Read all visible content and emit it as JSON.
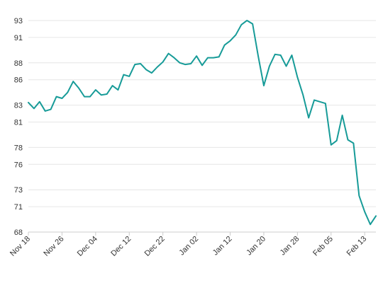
{
  "chart_data": {
    "type": "line",
    "title": "",
    "xlabel": "",
    "ylabel": "",
    "ylim": [
      68,
      94
    ],
    "grid": true,
    "line_color": "#179b98",
    "y_ticks": [
      "68",
      "71",
      "73",
      "76",
      "78",
      "81",
      "83",
      "86",
      "88",
      "91",
      "93"
    ],
    "x_ticks": [
      "Nov 18",
      "Nov 26",
      "Dec 04",
      "Dec 12",
      "Dec 22",
      "Jan 02",
      "Jan 12",
      "Jan 20",
      "Jan 28",
      "Feb 05",
      "Feb 13"
    ],
    "x_tick_index": [
      0,
      6,
      12,
      18,
      24,
      30,
      36,
      42,
      48,
      54,
      60
    ],
    "series": [
      {
        "values": [
          83.3,
          82.6,
          83.4,
          82.3,
          82.5,
          84.0,
          83.8,
          84.5,
          85.8,
          85.0,
          84.0,
          84.0,
          84.8,
          84.2,
          84.3,
          85.3,
          84.8,
          86.6,
          86.4,
          87.8,
          87.9,
          87.2,
          86.8,
          87.5,
          88.1,
          89.1,
          88.6,
          88.0,
          87.8,
          87.9,
          88.8,
          87.7,
          88.6,
          88.6,
          88.7,
          90.1,
          90.6,
          91.3,
          92.5,
          93.0,
          92.6,
          88.8,
          85.3,
          87.6,
          89.0,
          88.9,
          87.6,
          88.9,
          86.3,
          84.2,
          81.5,
          83.6,
          83.4,
          83.2,
          78.3,
          78.8,
          81.8,
          78.9,
          78.5,
          72.3,
          70.4,
          68.9,
          69.9
        ]
      }
    ]
  }
}
